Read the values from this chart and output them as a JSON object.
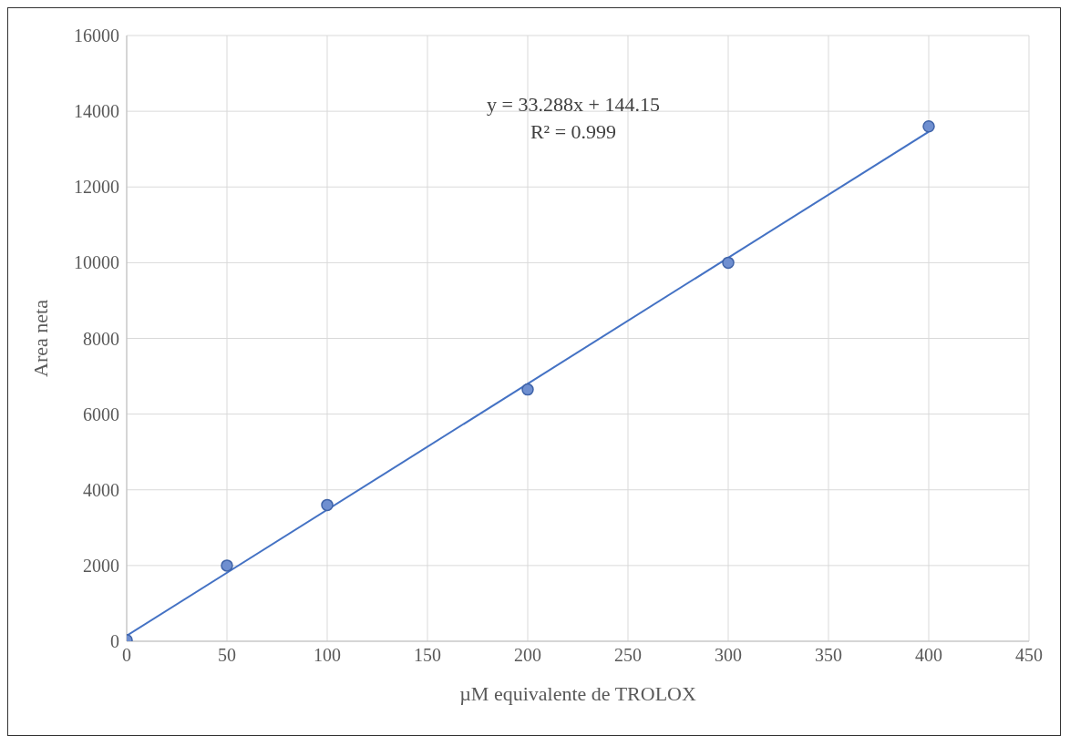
{
  "chart_data": {
    "type": "scatter",
    "xlabel": "µM equivalente de TROLOX",
    "ylabel": "Area neta",
    "annotations": [
      "y = 33.288x + 144.15",
      "R² = 0.999"
    ],
    "series": [
      {
        "color": "#6f8fd0",
        "x": [
          0,
          50,
          100,
          200,
          300,
          400
        ],
        "values": [
          30,
          2000,
          3600,
          6650,
          10000,
          13600
        ]
      },
      {
        "type": "line",
        "marker": "none",
        "color": "#4472c4",
        "x": [
          0,
          400
        ],
        "values": [
          144,
          13460
        ]
      }
    ],
    "xlim": [
      0,
      450
    ],
    "xticks": [
      0,
      50,
      100,
      150,
      200,
      250,
      300,
      350,
      400,
      450
    ],
    "ylim": [
      0,
      16000
    ],
    "yticks": [
      0,
      2000,
      4000,
      6000,
      8000,
      10000,
      12000,
      14000,
      16000
    ],
    "grid": true,
    "marker": "circle"
  }
}
